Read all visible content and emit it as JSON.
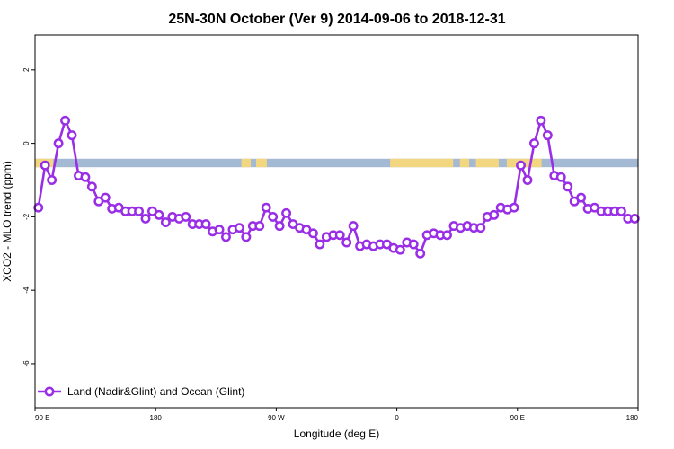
{
  "chart_data": {
    "type": "line",
    "title": "25N-30N October (Ver 9)   2014-09-06 to 2018-12-31",
    "xlabel": "Longitude (deg E)",
    "ylabel": "XCO2 - MLO trend (ppm)",
    "x_ticks": [
      {
        "value": 90,
        "label": "90 E"
      },
      {
        "value": 180,
        "label": "180"
      },
      {
        "value": 270,
        "label": "90 W"
      },
      {
        "value": 360,
        "label": "0"
      },
      {
        "value": 450,
        "label": "90 E"
      },
      {
        "value": 540,
        "label": "180"
      }
    ],
    "y_ticks": [
      {
        "value": 2,
        "label": "2"
      },
      {
        "value": 0,
        "label": "0"
      },
      {
        "value": -2,
        "label": "-2"
      },
      {
        "value": -4,
        "label": "-4"
      },
      {
        "value": -6,
        "label": "-6"
      }
    ],
    "xlim": [
      90,
      540
    ],
    "ylim": [
      -7.2,
      2.95
    ],
    "surface_strip": {
      "y_range": [
        -0.65,
        -0.42
      ],
      "ocean_color": "#a3b9d4",
      "land_color": "#f3d680",
      "land_segments": [
        [
          90,
          103.5
        ],
        [
          244,
          251
        ],
        [
          255,
          263
        ],
        [
          355,
          402
        ],
        [
          407,
          414
        ],
        [
          419,
          436
        ],
        [
          442,
          468
        ]
      ]
    },
    "series": [
      {
        "name": "Land (Nadir&Glint) and Ocean (Glint)",
        "color": "#9a2ee6",
        "x": [
          92.5,
          97.5,
          102.5,
          107.5,
          112.5,
          117.5,
          122.5,
          127.5,
          132.5,
          137.5,
          142.5,
          147.5,
          152.5,
          157.5,
          162.5,
          167.5,
          172.5,
          177.5,
          182.5,
          187.5,
          192.5,
          197.5,
          202.5,
          207.5,
          212.5,
          217.5,
          222.5,
          227.5,
          232.5,
          237.5,
          242.5,
          247.5,
          252.5,
          257.5,
          262.5,
          267.5,
          272.5,
          277.5,
          282.5,
          287.5,
          292.5,
          297.5,
          302.5,
          307.5,
          312.5,
          317.5,
          322.5,
          327.5,
          332.5,
          337.5,
          342.5,
          347.5,
          352.5,
          357.5,
          362.5,
          367.5,
          372.5,
          377.5,
          382.5,
          387.5,
          392.5,
          397.5,
          402.5,
          407.5,
          412.5,
          417.5,
          422.5,
          427.5,
          432.5,
          437.5,
          442.5,
          447.5,
          452.5,
          457.5,
          462.5,
          467.5,
          472.5,
          477.5,
          482.5,
          487.5,
          492.5,
          497.5,
          502.5,
          507.5,
          512.5,
          517.5,
          522.5,
          527.5,
          532.5,
          537.5
        ],
        "values": [
          -1.75,
          -0.6,
          -1.0,
          0.0,
          0.62,
          0.22,
          -0.88,
          -0.92,
          -1.18,
          -1.58,
          -1.48,
          -1.78,
          -1.75,
          -1.85,
          -1.85,
          -1.85,
          -2.05,
          -1.85,
          -1.95,
          -2.15,
          -2.0,
          -2.05,
          -2.0,
          -2.2,
          -2.2,
          -2.2,
          -2.4,
          -2.35,
          -2.55,
          -2.35,
          -2.3,
          -2.55,
          -2.25,
          -2.25,
          -1.75,
          -2.0,
          -2.25,
          -1.9,
          -2.2,
          -2.3,
          -2.35,
          -2.45,
          -2.75,
          -2.55,
          -2.5,
          -2.5,
          -2.7,
          -2.25,
          -2.8,
          -2.75,
          -2.8,
          -2.75,
          -2.75,
          -2.85,
          -2.9,
          -2.7,
          -2.75,
          -3.0,
          -2.5,
          -2.45,
          -2.5,
          -2.5,
          -2.25,
          -2.3,
          -2.25,
          -2.3,
          -2.3,
          -2.0,
          -1.95,
          -1.75,
          -1.8,
          -1.75,
          -0.6,
          -1.0,
          0.0,
          0.62,
          0.22,
          -0.88,
          -0.92,
          -1.18,
          -1.58,
          -1.48,
          -1.78,
          -1.75,
          -1.85,
          -1.85,
          -1.85,
          -1.85,
          -2.05,
          -2.05
        ]
      }
    ],
    "legend": {
      "position": "bottom-left",
      "label": "Land (Nadir&Glint) and Ocean (Glint)"
    }
  }
}
